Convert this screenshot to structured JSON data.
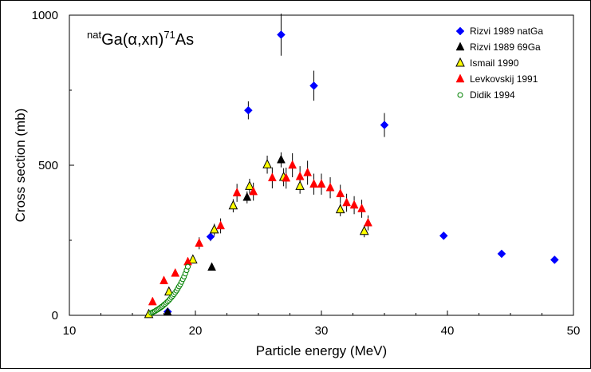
{
  "chart_data": {
    "type": "scatter",
    "title_parts": {
      "pre_sup": "nat",
      "main": "Ga(α,xn)",
      "mid_sup": "71",
      "post": "As"
    },
    "xlabel": "Particle energy (MeV)",
    "ylabel": "Cross section (mb)",
    "xlim": [
      10,
      50
    ],
    "ylim": [
      0,
      1000
    ],
    "xticks": [
      10,
      20,
      30,
      40,
      50
    ],
    "yticks": [
      0,
      500,
      1000
    ],
    "grid": false,
    "legend_position": "top-right",
    "series": [
      {
        "name": "Rizvi 1989 natGa",
        "marker": "diamond",
        "color": "#0000ff",
        "points": [
          {
            "x": 17.8,
            "y": 12
          },
          {
            "x": 21.2,
            "y": 262,
            "err": 15
          },
          {
            "x": 24.2,
            "y": 683,
            "err": 30
          },
          {
            "x": 26.8,
            "y": 935,
            "err": 70
          },
          {
            "x": 29.4,
            "y": 765,
            "err": 50
          },
          {
            "x": 35.0,
            "y": 634,
            "err": 40
          },
          {
            "x": 39.7,
            "y": 265,
            "err": 12
          },
          {
            "x": 44.3,
            "y": 205,
            "err": 10
          },
          {
            "x": 48.5,
            "y": 185,
            "err": 8
          }
        ]
      },
      {
        "name": "Rizvi 1989 69Ga",
        "marker": "triangle",
        "color": "#000000",
        "points": [
          {
            "x": 17.8,
            "y": 10
          },
          {
            "x": 21.3,
            "y": 160
          },
          {
            "x": 24.1,
            "y": 393,
            "err": 20
          },
          {
            "x": 26.8,
            "y": 518,
            "err": 25
          }
        ]
      },
      {
        "name": "Ismail 1990",
        "marker": "triangle-open",
        "color": "#ffff00",
        "points": [
          {
            "x": 16.3,
            "y": 3
          },
          {
            "x": 17.9,
            "y": 78
          },
          {
            "x": 19.8,
            "y": 185
          },
          {
            "x": 21.5,
            "y": 285,
            "err": 20
          },
          {
            "x": 23.0,
            "y": 365,
            "err": 22
          },
          {
            "x": 24.3,
            "y": 430,
            "err": 25
          },
          {
            "x": 25.7,
            "y": 502,
            "err": 30
          },
          {
            "x": 27.0,
            "y": 460,
            "err": 30
          },
          {
            "x": 28.3,
            "y": 430,
            "err": 25
          },
          {
            "x": 31.5,
            "y": 352,
            "err": 22
          },
          {
            "x": 33.4,
            "y": 280,
            "err": 20
          }
        ]
      },
      {
        "name": "Levkovskij 1991",
        "marker": "triangle",
        "color": "#ff0000",
        "points": [
          {
            "x": 16.6,
            "y": 45
          },
          {
            "x": 17.5,
            "y": 115
          },
          {
            "x": 18.4,
            "y": 140
          },
          {
            "x": 19.4,
            "y": 178
          },
          {
            "x": 20.3,
            "y": 240,
            "err": 20
          },
          {
            "x": 22.0,
            "y": 298,
            "err": 25
          },
          {
            "x": 23.3,
            "y": 408,
            "err": 30
          },
          {
            "x": 24.6,
            "y": 412,
            "err": 30
          },
          {
            "x": 26.1,
            "y": 458,
            "err": 35
          },
          {
            "x": 27.2,
            "y": 457,
            "err": 35
          },
          {
            "x": 27.7,
            "y": 500,
            "err": 40
          },
          {
            "x": 28.3,
            "y": 462,
            "err": 35
          },
          {
            "x": 28.9,
            "y": 475,
            "err": 40
          },
          {
            "x": 29.4,
            "y": 437,
            "err": 35
          },
          {
            "x": 30.0,
            "y": 437,
            "err": 35
          },
          {
            "x": 30.7,
            "y": 425,
            "err": 35
          },
          {
            "x": 31.5,
            "y": 405,
            "err": 30
          },
          {
            "x": 32.0,
            "y": 375,
            "err": 30
          },
          {
            "x": 32.6,
            "y": 367,
            "err": 30
          },
          {
            "x": 33.2,
            "y": 355,
            "err": 30
          },
          {
            "x": 33.7,
            "y": 308,
            "err": 25
          }
        ]
      },
      {
        "name": "Didik 1994",
        "marker": "circle-open",
        "color": "#008000",
        "points": [
          {
            "x": 16.5,
            "y": 8
          },
          {
            "x": 16.6,
            "y": 10
          },
          {
            "x": 16.7,
            "y": 12
          },
          {
            "x": 16.8,
            "y": 14
          },
          {
            "x": 16.9,
            "y": 17
          },
          {
            "x": 17.0,
            "y": 19
          },
          {
            "x": 17.1,
            "y": 22
          },
          {
            "x": 17.2,
            "y": 25
          },
          {
            "x": 17.3,
            "y": 28
          },
          {
            "x": 17.4,
            "y": 31
          },
          {
            "x": 17.5,
            "y": 35
          },
          {
            "x": 17.6,
            "y": 38
          },
          {
            "x": 17.7,
            "y": 42
          },
          {
            "x": 17.8,
            "y": 46
          },
          {
            "x": 17.9,
            "y": 50
          },
          {
            "x": 18.0,
            "y": 55
          },
          {
            "x": 18.1,
            "y": 60
          },
          {
            "x": 18.2,
            "y": 65
          },
          {
            "x": 18.3,
            "y": 70
          },
          {
            "x": 18.4,
            "y": 76
          },
          {
            "x": 18.5,
            "y": 82
          },
          {
            "x": 18.6,
            "y": 89
          },
          {
            "x": 18.7,
            "y": 96
          },
          {
            "x": 18.8,
            "y": 103
          },
          {
            "x": 18.9,
            "y": 111
          },
          {
            "x": 19.0,
            "y": 120
          },
          {
            "x": 19.1,
            "y": 129
          },
          {
            "x": 19.2,
            "y": 139
          },
          {
            "x": 19.3,
            "y": 150
          },
          {
            "x": 19.4,
            "y": 162
          }
        ]
      }
    ]
  }
}
